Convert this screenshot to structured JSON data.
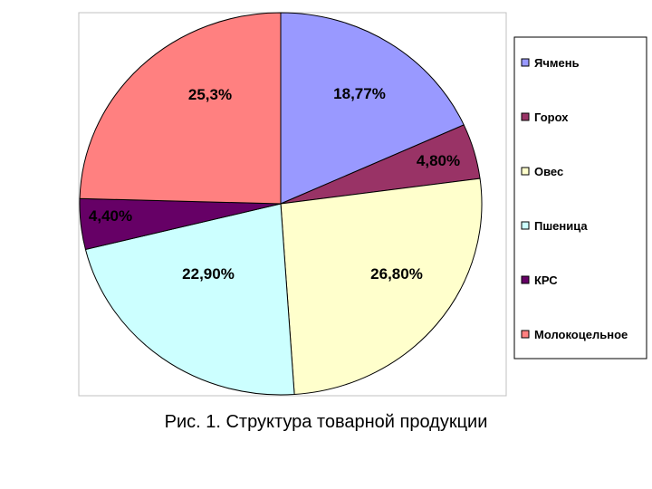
{
  "chart_data": {
    "type": "pie",
    "title": "",
    "slices": [
      {
        "name": "Ячмень",
        "value": 18.77,
        "label": "18,77%",
        "color": "#9999ff"
      },
      {
        "name": "Горох",
        "value": 4.8,
        "label": "4,80%",
        "color": "#993366"
      },
      {
        "name": "Овес",
        "value": 26.8,
        "label": "26,80%",
        "color": "#ffffcc"
      },
      {
        "name": "Пшеница",
        "value": 22.9,
        "label": "22,90%",
        "color": "#ccffff"
      },
      {
        "name": "КРС",
        "value": 4.4,
        "label": "4,40%",
        "color": "#660066"
      },
      {
        "name": "Молокоцельное",
        "value": 25.3,
        "label": "25,3%",
        "color": "#ff8080"
      }
    ],
    "legend_position": "right"
  },
  "caption": "Рис. 1. Структура товарной продукции"
}
